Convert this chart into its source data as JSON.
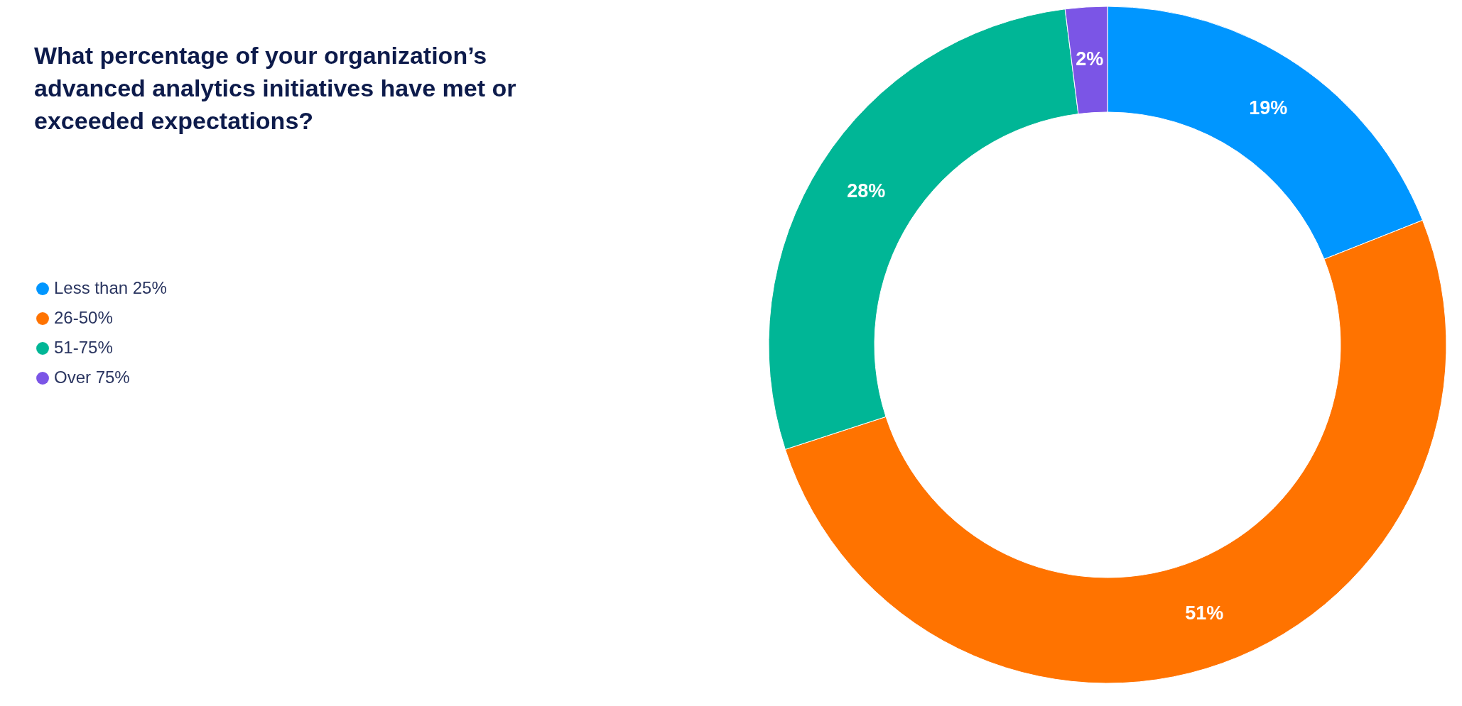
{
  "chart_data": {
    "type": "donut",
    "title": "What percentage of your organization’s advanced analytics initiatives have met or exceeded expectations?",
    "categories": [
      "Less than 25%",
      "26-50%",
      "51-75%",
      "Over 75%"
    ],
    "values": [
      19,
      51,
      28,
      2
    ],
    "value_labels": [
      "19%",
      "51%",
      "28%",
      "2%"
    ],
    "colors": [
      "#0096ff",
      "#ff7300",
      "#00b696",
      "#7b55e6"
    ],
    "legend": "left"
  }
}
